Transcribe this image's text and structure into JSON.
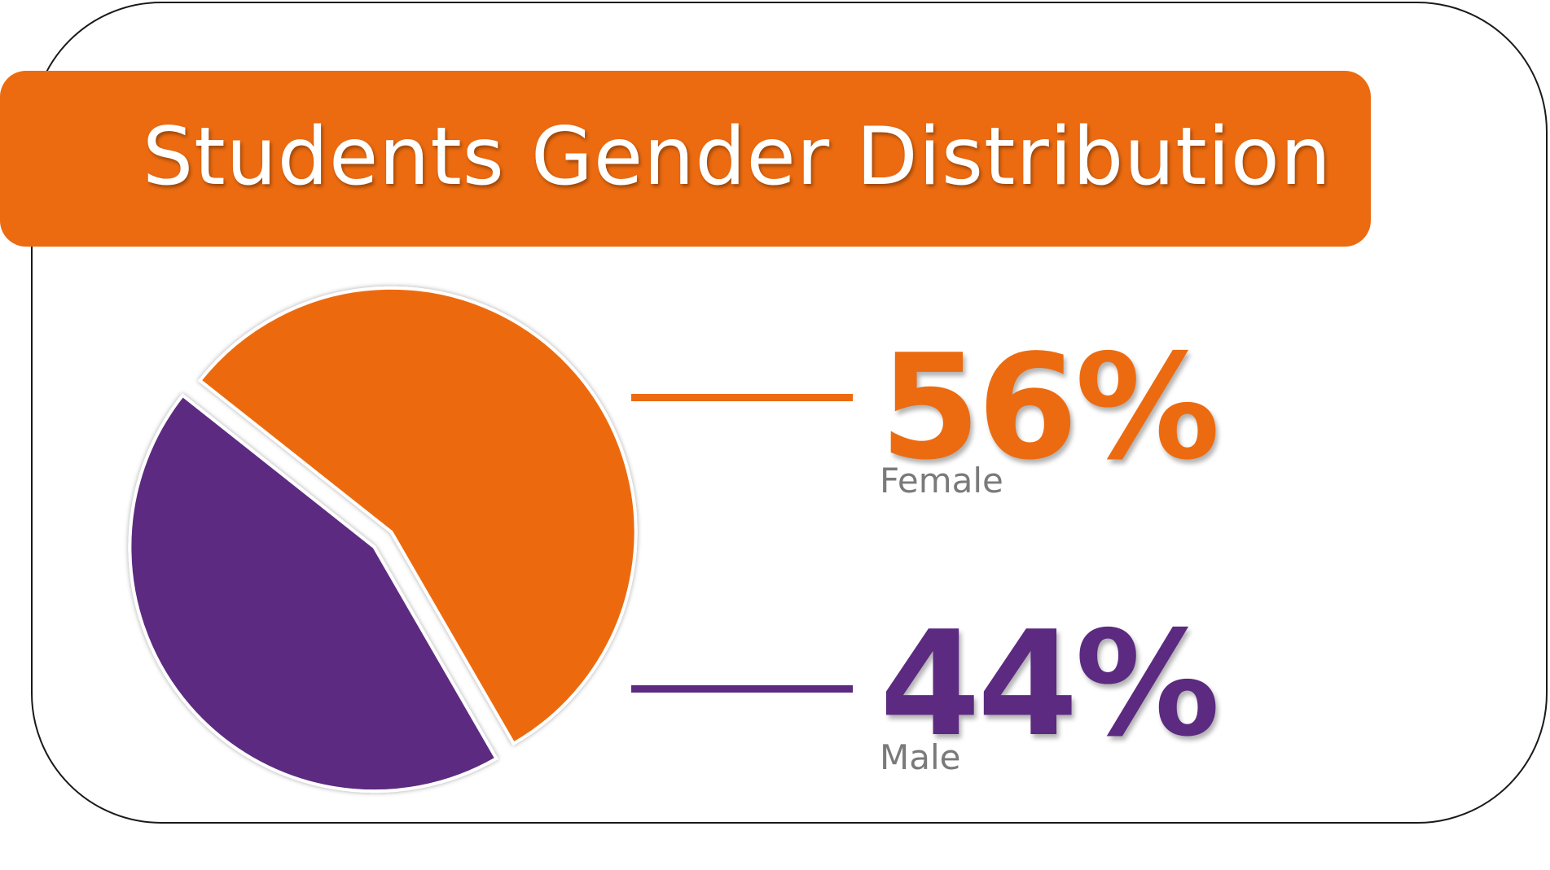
{
  "chart_data": {
    "type": "pie",
    "title": "Students Gender Distribution",
    "unit": "%",
    "slices": [
      {
        "label": "Female",
        "value": 56,
        "color": "#ec6b10",
        "display": "56%"
      },
      {
        "label": "Male",
        "value": 44,
        "color": "#5c2a80",
        "display": "44%"
      }
    ],
    "legend": "right"
  },
  "colors": {
    "accent": "#ec6b10",
    "secondary": "#5c2a80",
    "label_gray": "#7a7a7a"
  }
}
